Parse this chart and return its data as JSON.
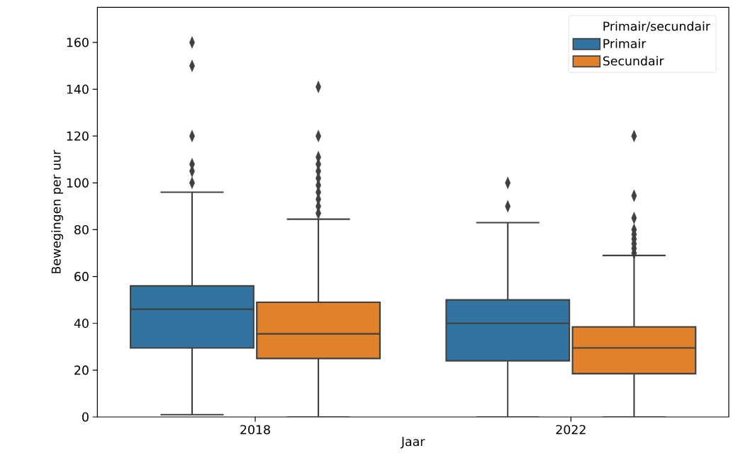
{
  "chart_data": {
    "type": "box",
    "xlabel": "Jaar",
    "ylabel": "Bewegingen per uur",
    "categories": [
      "2018",
      "2022"
    ],
    "ylim": [
      0,
      175
    ],
    "yticks": [
      0,
      20,
      40,
      60,
      80,
      100,
      120,
      140,
      160
    ],
    "legend": "top right",
    "legend_title": "Primair/secundair",
    "marker": "diamond",
    "series": [
      {
        "name": "Primair",
        "color": "#3274a1",
        "boxes": [
          {
            "low": 1,
            "q1": 29.5,
            "median": 46,
            "q3": 56,
            "high": 96,
            "outliers": [
              100,
              105,
              108,
              120,
              150,
              160
            ]
          },
          {
            "low": 0,
            "q1": 24,
            "median": 40,
            "q3": 50,
            "high": 83,
            "outliers": [
              90,
              100
            ]
          }
        ]
      },
      {
        "name": "Secundair",
        "color": "#e1812c",
        "boxes": [
          {
            "low": 0,
            "q1": 25,
            "median": 35.5,
            "q3": 49,
            "high": 84.5,
            "outliers": [
              87,
              90,
              93,
              96,
              99,
              102,
              105,
              108,
              111,
              120,
              141
            ]
          },
          {
            "low": 0,
            "q1": 18.5,
            "median": 29.5,
            "q3": 38.5,
            "high": 69,
            "outliers": [
              70,
              72,
              74,
              76,
              78,
              80,
              85,
              94.5,
              120
            ]
          }
        ]
      }
    ]
  }
}
